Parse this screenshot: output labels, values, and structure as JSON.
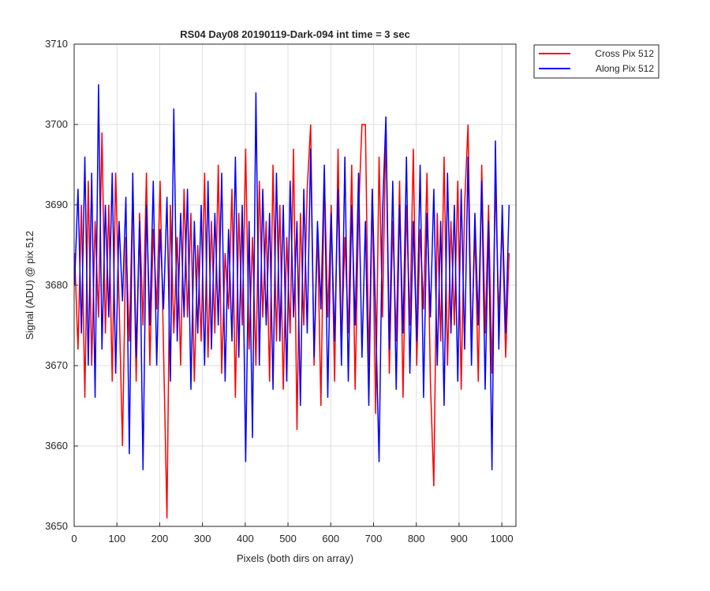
{
  "chart_data": {
    "type": "line",
    "title": "RS04 Day08 20190119-Dark-094 int time = 3 sec",
    "x_label": "Pixels (both dirs on array)",
    "y_label": "Signal (ADU) @ pix 512",
    "x": [
      1,
      9,
      17,
      25,
      33,
      41,
      49,
      57,
      65,
      73,
      81,
      89,
      97,
      105,
      113,
      121,
      129,
      137,
      145,
      153,
      161,
      169,
      177,
      185,
      193,
      201,
      209,
      217,
      225,
      233,
      241,
      249,
      257,
      265,
      273,
      281,
      289,
      297,
      305,
      313,
      321,
      329,
      337,
      345,
      353,
      361,
      369,
      377,
      385,
      393,
      401,
      409,
      417,
      425,
      433,
      441,
      449,
      457,
      465,
      473,
      481,
      489,
      497,
      505,
      513,
      521,
      529,
      537,
      545,
      553,
      561,
      569,
      577,
      585,
      593,
      601,
      609,
      617,
      625,
      633,
      641,
      649,
      657,
      665,
      673,
      681,
      689,
      697,
      705,
      713,
      721,
      729,
      737,
      745,
      753,
      761,
      769,
      777,
      785,
      793,
      801,
      809,
      817,
      825,
      833,
      841,
      849,
      857,
      865,
      873,
      881,
      889,
      897,
      905,
      913,
      921,
      929,
      937,
      945,
      953,
      961,
      969,
      977,
      985,
      993,
      1001,
      1009,
      1017
    ],
    "series": [
      {
        "name": "Cross Pix 512",
        "color": "#ff0000",
        "values": [
          3684,
          3672,
          3690,
          3666,
          3693,
          3670,
          3688,
          3676,
          3699,
          3674,
          3690,
          3668,
          3694,
          3678,
          3660,
          3686,
          3673,
          3692,
          3668,
          3689,
          3675,
          3694,
          3670,
          3687,
          3677,
          3693,
          3672,
          3651,
          3690,
          3674,
          3686,
          3670,
          3692,
          3676,
          3689,
          3668,
          3685,
          3673,
          3694,
          3671,
          3688,
          3674,
          3695,
          3669,
          3684,
          3677,
          3692,
          3666,
          3689,
          3675,
          3697,
          3672,
          3686,
          3670,
          3693,
          3676,
          3688,
          3668,
          3695,
          3673,
          3690,
          3667,
          3686,
          3674,
          3697,
          3662,
          3689,
          3675,
          3692,
          3700,
          3670,
          3687,
          3665,
          3694,
          3676,
          3690,
          3668,
          3697,
          3672,
          3686,
          3674,
          3695,
          3667,
          3689,
          3700,
          3700,
          3670,
          3692,
          3664,
          3696,
          3676,
          3700,
          3669,
          3688,
          3673,
          3693,
          3666,
          3690,
          3675,
          3697,
          3670,
          3687,
          3677,
          3694,
          3668,
          3655,
          3689,
          3673,
          3696,
          3670,
          3688,
          3675,
          3693,
          3667,
          3690,
          3700,
          3672,
          3687,
          3668,
          3695,
          3674,
          3690,
          3669,
          3693,
          3676,
          3688,
          3671,
          3684
        ]
      },
      {
        "name": "Along Pix 512",
        "color": "#0000ff",
        "values": [
          3680,
          3692,
          3674,
          3696,
          3670,
          3694,
          3666,
          3705,
          3672,
          3690,
          3676,
          3694,
          3669,
          3688,
          3678,
          3691,
          3659,
          3694,
          3671,
          3688,
          3657,
          3690,
          3675,
          3693,
          3670,
          3687,
          3677,
          3691,
          3668,
          3702,
          3673,
          3689,
          3676,
          3692,
          3667,
          3688,
          3674,
          3690,
          3670,
          3693,
          3672,
          3689,
          3675,
          3694,
          3668,
          3687,
          3673,
          3696,
          3671,
          3690,
          3658,
          3688,
          3661,
          3704,
          3670,
          3692,
          3675,
          3689,
          3667,
          3694,
          3673,
          3690,
          3668,
          3693,
          3676,
          3688,
          3665,
          3692,
          3674,
          3697,
          3671,
          3688,
          3677,
          3695,
          3666,
          3689,
          3673,
          3692,
          3670,
          3696,
          3668,
          3690,
          3675,
          3694,
          3671,
          3688,
          3665,
          3692,
          3676,
          3658,
          3689,
          3701,
          3672,
          3693,
          3667,
          3690,
          3674,
          3696,
          3669,
          3688,
          3673,
          3695,
          3666,
          3689,
          3676,
          3692,
          3670,
          3688,
          3665,
          3694,
          3674,
          3690,
          3668,
          3692,
          3672,
          3696,
          3670,
          3689,
          3675,
          3693,
          3667,
          3688,
          3657,
          3698,
          3672,
          3690,
          3674,
          3690
        ]
      }
    ],
    "xlim": [
      0,
      1033
    ],
    "ylim": [
      3650,
      3710
    ],
    "xticks": [
      0,
      100,
      200,
      300,
      400,
      500,
      600,
      700,
      800,
      900,
      1000
    ],
    "yticks": [
      3650,
      3660,
      3670,
      3680,
      3690,
      3700,
      3710
    ],
    "grid": true,
    "legend": "outside-top-right"
  }
}
